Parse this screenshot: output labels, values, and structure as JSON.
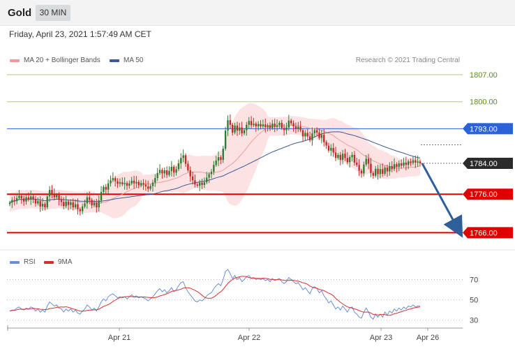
{
  "header": {
    "instrument": "Gold",
    "timeframe": "30 MIN"
  },
  "datetime": "Friday, April 23, 2021 1:57:49 AM CET",
  "credit": "Research © 2021 Trading Central",
  "colors": {
    "resistance_green": "#b5c97a",
    "pivot_blue": "#2962d9",
    "support_red": "#e00000",
    "candle_up": "#2e7d32",
    "candle_down": "#c62828",
    "bb_fill": "#fbd8d8",
    "ma20": "#e8a0a0",
    "ma50": "#3b5998",
    "rsi": "#6b8ed6",
    "rsi_ma": "#d32f2f",
    "forecast_arrow": "#2f5f9a",
    "last_price_bg": "#2b2b2b"
  },
  "chart_data": [
    {
      "type": "candlestick",
      "title": "Gold",
      "timeframe": "30 MIN",
      "legend": [
        "MA 20 + Bollinger Bands",
        "MA 50"
      ],
      "x_labels": [
        "Apr 21",
        "Apr 22",
        "Apr 23",
        "Apr 26"
      ],
      "y_range": [
        1763,
        1809
      ],
      "levels": [
        {
          "value": 1807.0,
          "label": "1807.00",
          "kind": "resistance"
        },
        {
          "value": 1800.0,
          "label": "1800.00",
          "kind": "resistance"
        },
        {
          "value": 1793.0,
          "label": "1793.00",
          "kind": "pivot"
        },
        {
          "value": 1776.0,
          "label": "1776.00",
          "kind": "support"
        },
        {
          "value": 1766.0,
          "label": "1766.00",
          "kind": "support"
        }
      ],
      "last_price": {
        "value": 1784.0,
        "label": "1784.00"
      },
      "forecast": {
        "from": 1784.0,
        "to": 1766.0,
        "direction": "down"
      },
      "close": [
        1773.8,
        1774.5,
        1774.2,
        1775.0,
        1775.6,
        1774.9,
        1774.1,
        1775.2,
        1774.6,
        1775.4,
        1774.8,
        1773.6,
        1774.2,
        1772.8,
        1773.5,
        1772.6,
        1775.4,
        1777.1,
        1776.0,
        1775.2,
        1775.8,
        1774.5,
        1774.0,
        1772.9,
        1774.1,
        1773.2,
        1773.9,
        1772.6,
        1773.4,
        1772.1,
        1771.6,
        1772.8,
        1773.6,
        1775.2,
        1774.5,
        1773.1,
        1773.8,
        1772.6,
        1774.4,
        1776.6,
        1777.9,
        1777.2,
        1778.8,
        1779.6,
        1780.2,
        1779.4,
        1778.7,
        1779.1,
        1778.6,
        1778.9,
        1778.2,
        1778.8,
        1779.5,
        1778.8,
        1779.2,
        1778.3,
        1778.9,
        1778.5,
        1778.0,
        1777.4,
        1778.1,
        1779.0,
        1780.2,
        1781.5,
        1782.3,
        1781.4,
        1782.2,
        1781.0,
        1782.0,
        1783.1,
        1781.6,
        1782.5,
        1784.0,
        1785.4,
        1786.1,
        1783.9,
        1782.2,
        1780.6,
        1779.6,
        1778.5,
        1778.2,
        1779.0,
        1778.4,
        1779.1,
        1780.3,
        1781.2,
        1781.8,
        1783.6,
        1784.7,
        1785.6,
        1784.9,
        1787.8,
        1792.5,
        1795.2,
        1794.0,
        1792.0,
        1793.8,
        1792.5,
        1793.3,
        1791.8,
        1792.6,
        1794.0,
        1795.0,
        1793.9,
        1794.3,
        1793.6,
        1794.2,
        1793.6,
        1794.1,
        1793.4,
        1793.9,
        1793.2,
        1794.3,
        1793.5,
        1793.9,
        1794.5,
        1793.2,
        1792.6,
        1793.3,
        1795.1,
        1794.4,
        1793.6,
        1792.9,
        1793.5,
        1792.6,
        1791.0,
        1791.9,
        1791.0,
        1790.0,
        1791.8,
        1792.6,
        1792.0,
        1790.6,
        1791.4,
        1789.5,
        1788.6,
        1787.3,
        1788.0,
        1786.8,
        1785.4,
        1786.2,
        1784.9,
        1786.5,
        1785.4,
        1784.3,
        1785.6,
        1786.2,
        1784.2,
        1783.6,
        1782.1,
        1781.4,
        1783.7,
        1785.2,
        1783.9,
        1781.5,
        1780.8,
        1782.6,
        1781.2,
        1782.5,
        1781.3,
        1782.9,
        1781.9,
        1783.3,
        1782.5,
        1783.8,
        1783.1,
        1784.0,
        1783.4,
        1784.2,
        1783.6,
        1784.5,
        1784.1,
        1784.8,
        1784.2,
        1784.5,
        1784.0
      ]
    },
    {
      "type": "line",
      "title": "RSI",
      "legend": [
        "RSI",
        "9MA"
      ],
      "y_ticks": [
        70,
        50,
        30
      ],
      "y_range": [
        25,
        80
      ],
      "rsi": [
        39,
        40,
        40,
        42,
        43,
        41,
        40,
        42,
        41,
        43,
        42,
        39,
        41,
        38,
        40,
        38,
        44,
        48,
        46,
        44,
        45,
        42,
        41,
        38,
        41,
        39,
        41,
        38,
        40,
        37,
        36,
        39,
        41,
        45,
        43,
        40,
        42,
        39,
        43,
        48,
        51,
        49,
        53,
        55,
        56,
        54,
        52,
        53,
        52,
        53,
        51,
        53,
        55,
        53,
        54,
        52,
        53,
        52,
        51,
        49,
        51,
        53,
        56,
        59,
        61,
        58,
        60,
        57,
        59,
        62,
        58,
        60,
        64,
        67,
        68,
        62,
        58,
        55,
        52,
        49,
        48,
        50,
        49,
        51,
        54,
        56,
        57,
        61,
        64,
        66,
        64,
        70,
        78,
        80,
        76,
        71,
        74,
        70,
        72,
        68,
        70,
        73,
        74,
        71,
        72,
        70,
        71,
        70,
        71,
        69,
        70,
        68,
        71,
        69,
        70,
        71,
        68,
        66,
        68,
        72,
        70,
        68,
        66,
        67,
        64,
        60,
        62,
        59,
        56,
        61,
        63,
        61,
        57,
        59,
        54,
        51,
        47,
        49,
        45,
        41,
        43,
        40,
        44,
        41,
        38,
        42,
        43,
        38,
        36,
        33,
        32,
        38,
        42,
        38,
        33,
        31,
        36,
        33,
        36,
        33,
        38,
        35,
        39,
        37,
        41,
        39,
        42,
        40,
        43,
        41,
        44,
        43,
        45,
        43,
        44,
        44
      ]
    }
  ]
}
